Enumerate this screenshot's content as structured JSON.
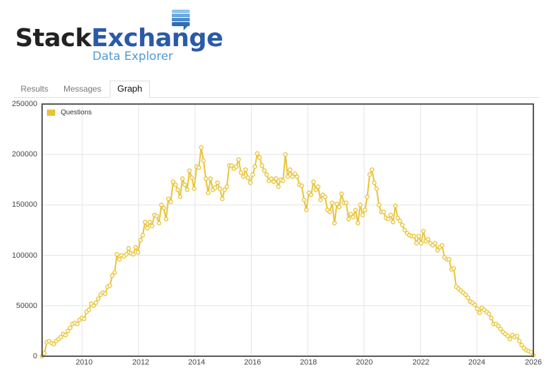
{
  "logo": {
    "stack": "Stack",
    "exchange": "Exchange",
    "subtitle": "Data Explorer"
  },
  "tabs": [
    {
      "label": "Results",
      "active": false
    },
    {
      "label": "Messages",
      "active": false
    },
    {
      "label": "Graph",
      "active": true
    }
  ],
  "colors": {
    "series": "#e8c239",
    "axis": "#555555",
    "grid": "#e3e3e3"
  },
  "chart_data": {
    "type": "line",
    "title": "",
    "xlabel": "",
    "ylabel": "",
    "legend": [
      "Questions"
    ],
    "legend_position": "top-left-inside",
    "grid": true,
    "xlim": [
      2008.58,
      2026.0
    ],
    "ylim": [
      0,
      250000
    ],
    "x_ticks": [
      "2010",
      "2012",
      "2014",
      "2016",
      "2018",
      "2020",
      "2022",
      "2024",
      "2026"
    ],
    "y_ticks": [
      "0",
      "50000",
      "100000",
      "150000",
      "200000",
      "250000"
    ],
    "x_start": "2008-08",
    "x_step": "month",
    "series": [
      {
        "name": "Questions",
        "values": [
          0,
          3000,
          14000,
          15000,
          13000,
          12000,
          15000,
          17000,
          19000,
          22000,
          21000,
          25000,
          28000,
          32000,
          33000,
          32000,
          36000,
          38000,
          37000,
          44000,
          46000,
          52000,
          50000,
          53000,
          57000,
          61000,
          63000,
          62000,
          69000,
          70000,
          80000,
          83000,
          101000,
          96000,
          100000,
          99000,
          101000,
          107000,
          102000,
          101000,
          108000,
          103000,
          115000,
          120000,
          133000,
          127000,
          133000,
          129000,
          140000,
          139000,
          132000,
          150000,
          147000,
          136000,
          156000,
          153000,
          173000,
          170000,
          165000,
          158000,
          176000,
          170000,
          165000,
          184000,
          177000,
          166000,
          188000,
          187000,
          207000,
          194000,
          176000,
          162000,
          176000,
          165000,
          167000,
          172000,
          166000,
          156000,
          165000,
          168000,
          189000,
          189000,
          186000,
          188000,
          195000,
          182000,
          178000,
          185000,
          177000,
          172000,
          180000,
          188000,
          201000,
          197000,
          189000,
          184000,
          180000,
          174000,
          176000,
          173000,
          176000,
          168000,
          175000,
          174000,
          200000,
          178000,
          185000,
          178000,
          181000,
          178000,
          170000,
          169000,
          155000,
          145000,
          162000,
          160000,
          173000,
          165000,
          168000,
          155000,
          160000,
          158000,
          145000,
          143000,
          152000,
          132000,
          151000,
          148000,
          161000,
          152000,
          152000,
          136000,
          141000,
          138000,
          145000,
          132000,
          150000,
          140000,
          145000,
          158000,
          180000,
          185000,
          172000,
          166000,
          150000,
          143000,
          143000,
          137000,
          136000,
          140000,
          133000,
          149000,
          137000,
          134000,
          130000,
          125000,
          122000,
          120000,
          119000,
          119000,
          112000,
          119000,
          112000,
          124000,
          114000,
          116000,
          112000,
          110000,
          112000,
          105000,
          108000,
          110000,
          98000,
          96000,
          96000,
          86000,
          87000,
          69000,
          67000,
          65000,
          63000,
          61000,
          58000,
          54000,
          53000,
          51000,
          47000,
          43000,
          48000,
          46000,
          44000,
          42000,
          38000,
          32000,
          32000,
          30000,
          27000,
          24000,
          22000,
          20000,
          17000,
          21000,
          19000,
          20000,
          15000,
          11000,
          8000,
          6000,
          5000,
          4000,
          1000
        ]
      }
    ]
  }
}
